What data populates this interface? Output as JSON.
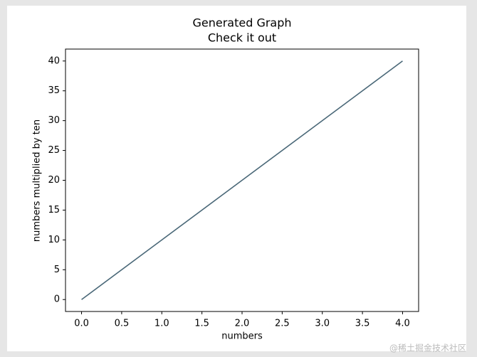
{
  "chart_data": {
    "type": "line",
    "title": "Generated Graph",
    "subtitle": "Check it out",
    "x_label": "numbers",
    "y_label": "numbers multiplied by ten",
    "x": [
      0,
      1,
      2,
      3,
      4
    ],
    "series": [
      {
        "name": "numbers multiplied by ten",
        "color": "#4a6878",
        "values": [
          0,
          10,
          20,
          30,
          40
        ]
      }
    ],
    "xlim": [
      -0.2,
      4.2
    ],
    "ylim": [
      -2,
      42
    ],
    "xticks": [
      {
        "value": 0,
        "label": "0.0"
      },
      0.5,
      {
        "value": 1,
        "label": "1.0"
      },
      1.5,
      {
        "value": 2,
        "label": "2.0"
      },
      2.5,
      {
        "value": 3,
        "label": "3.0"
      },
      3.5,
      {
        "value": 4,
        "label": "4.0"
      }
    ],
    "yticks": [
      0,
      5,
      10,
      15,
      20,
      25,
      30,
      35,
      40
    ],
    "grid": false,
    "watermark": "@稀土掘金技术社区"
  }
}
